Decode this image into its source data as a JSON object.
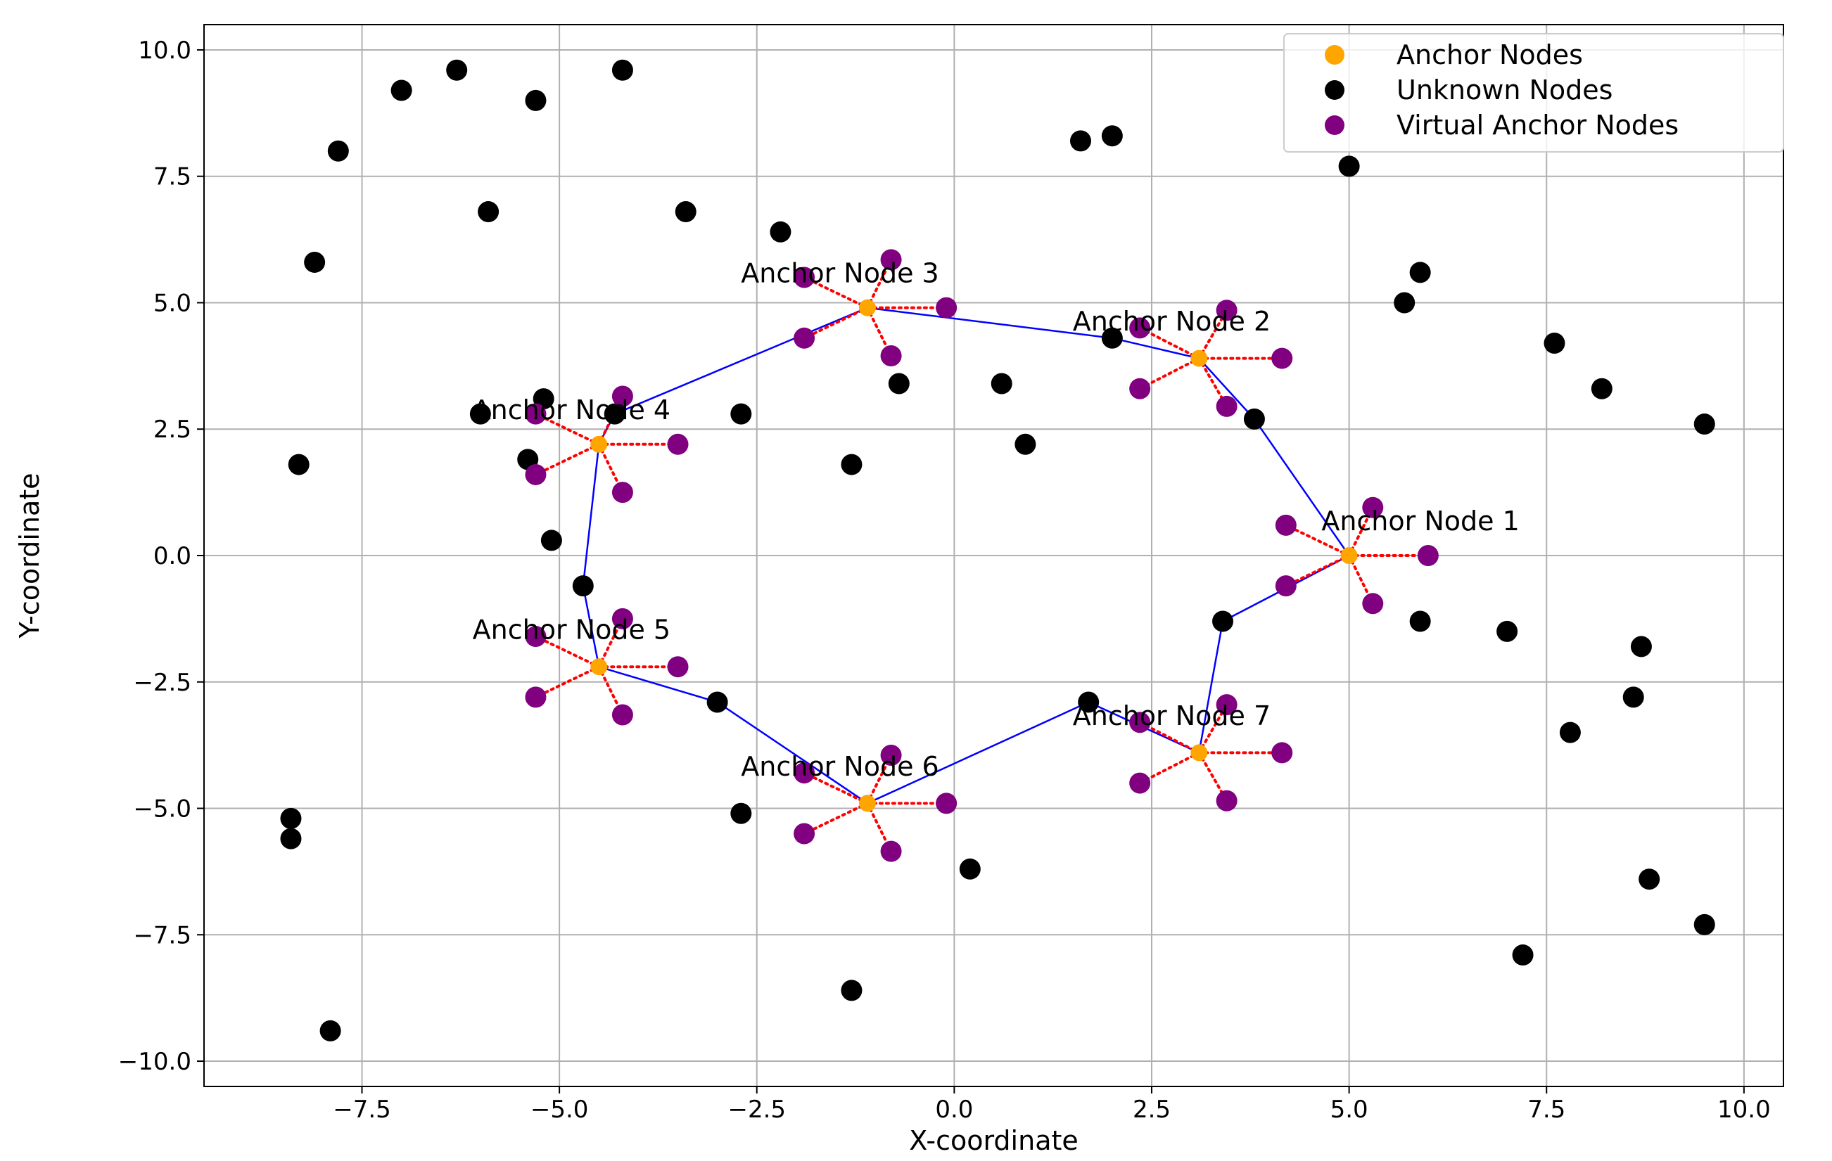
{
  "chart_data": {
    "type": "scatter",
    "title": "",
    "xlabel": "X-coordinate",
    "ylabel": "Y-coordinate",
    "xlim": [
      -9.5,
      10.5
    ],
    "ylim": [
      -10.5,
      10.5
    ],
    "xticks": [
      -7.5,
      -5.0,
      -2.5,
      0.0,
      2.5,
      5.0,
      7.5,
      10.0
    ],
    "yticks": [
      -10.0,
      -7.5,
      -5.0,
      -2.5,
      0.0,
      2.5,
      5.0,
      7.5,
      10.0
    ],
    "xtick_labels": [
      "−7.5",
      "−5.0",
      "−2.5",
      "0.0",
      "2.5",
      "5.0",
      "7.5",
      "10.0"
    ],
    "ytick_labels": [
      "−10.0",
      "−7.5",
      "−5.0",
      "−2.5",
      "0.0",
      "2.5",
      "5.0",
      "7.5",
      "10.0"
    ],
    "grid": true,
    "legend_position": "top-right",
    "colors": {
      "anchor": "#ffa500",
      "unknown": "#000000",
      "virtual": "#800080",
      "path": "#0000ff",
      "links": "#ff0000",
      "grid": "#b0b0b0"
    },
    "legend": [
      {
        "label": "Anchor Nodes",
        "color": "#ffa500"
      },
      {
        "label": "Unknown Nodes",
        "color": "#000000"
      },
      {
        "label": "Virtual Anchor Nodes",
        "color": "#800080"
      }
    ],
    "anchor_nodes": [
      {
        "label": "Anchor Node 1",
        "x": 5.0,
        "y": 0.0,
        "annot_dx": -0.35,
        "annot_dy": 0.5
      },
      {
        "label": "Anchor Node 2",
        "x": 3.1,
        "y": 3.9,
        "annot_dx": -1.6,
        "annot_dy": 0.55
      },
      {
        "label": "Anchor Node 3",
        "x": -1.1,
        "y": 4.9,
        "annot_dx": -1.6,
        "annot_dy": 0.5
      },
      {
        "label": "Anchor Node 4",
        "x": -4.5,
        "y": 2.2,
        "annot_dx": -1.6,
        "annot_dy": 0.5
      },
      {
        "label": "Anchor Node 5",
        "x": -4.5,
        "y": -2.2,
        "annot_dx": -1.6,
        "annot_dy": 0.55
      },
      {
        "label": "Anchor Node 6",
        "x": -1.1,
        "y": -4.9,
        "annot_dx": -1.6,
        "annot_dy": 0.55
      },
      {
        "label": "Anchor Node 7",
        "x": 3.1,
        "y": -3.9,
        "annot_dx": -1.6,
        "annot_dy": 0.55
      }
    ],
    "virtual_anchor_nodes": [
      [
        [
          6.0,
          0.0
        ],
        [
          5.3,
          0.95
        ],
        [
          4.2,
          0.6
        ],
        [
          4.2,
          -0.6
        ],
        [
          5.3,
          -0.95
        ]
      ],
      [
        [
          4.15,
          3.9
        ],
        [
          3.45,
          4.85
        ],
        [
          2.35,
          4.5
        ],
        [
          2.35,
          3.3
        ],
        [
          3.45,
          2.95
        ]
      ],
      [
        [
          -0.1,
          4.9
        ],
        [
          -0.8,
          5.85
        ],
        [
          -1.9,
          5.5
        ],
        [
          -1.9,
          4.3
        ],
        [
          -0.8,
          3.95
        ]
      ],
      [
        [
          -3.5,
          2.2
        ],
        [
          -4.2,
          3.15
        ],
        [
          -5.3,
          2.8
        ],
        [
          -5.3,
          1.6
        ],
        [
          -4.2,
          1.25
        ]
      ],
      [
        [
          -3.5,
          -2.2
        ],
        [
          -4.2,
          -1.25
        ],
        [
          -5.3,
          -1.6
        ],
        [
          -5.3,
          -2.8
        ],
        [
          -4.2,
          -3.15
        ]
      ],
      [
        [
          -0.1,
          -4.9
        ],
        [
          -0.8,
          -3.95
        ],
        [
          -1.9,
          -4.3
        ],
        [
          -1.9,
          -5.5
        ],
        [
          -0.8,
          -5.85
        ]
      ],
      [
        [
          4.15,
          -3.9
        ],
        [
          3.45,
          -2.95
        ],
        [
          2.35,
          -3.3
        ],
        [
          2.35,
          -4.5
        ],
        [
          3.45,
          -4.85
        ]
      ]
    ],
    "unknown_nodes": [
      [
        -7.0,
        9.2
      ],
      [
        -6.3,
        9.6
      ],
      [
        -5.3,
        9.0
      ],
      [
        -4.2,
        9.6
      ],
      [
        -7.8,
        8.0
      ],
      [
        -5.9,
        6.8
      ],
      [
        -3.4,
        6.8
      ],
      [
        -2.2,
        6.4
      ],
      [
        -8.1,
        5.8
      ],
      [
        1.6,
        8.2
      ],
      [
        2.0,
        8.3
      ],
      [
        5.0,
        7.7
      ],
      [
        5.9,
        5.6
      ],
      [
        5.7,
        5.0
      ],
      [
        7.6,
        4.2
      ],
      [
        8.2,
        3.3
      ],
      [
        9.5,
        2.6
      ],
      [
        2.0,
        4.3
      ],
      [
        0.6,
        3.4
      ],
      [
        -0.7,
        3.4
      ],
      [
        -6.0,
        2.8
      ],
      [
        -5.2,
        3.1
      ],
      [
        -4.3,
        2.8
      ],
      [
        -2.7,
        2.8
      ],
      [
        -8.3,
        1.8
      ],
      [
        -5.4,
        1.9
      ],
      [
        -1.3,
        1.8
      ],
      [
        0.9,
        2.2
      ],
      [
        3.8,
        2.7
      ],
      [
        -5.1,
        0.3
      ],
      [
        -4.7,
        -0.6
      ],
      [
        3.4,
        -1.3
      ],
      [
        5.9,
        -1.3
      ],
      [
        7.0,
        -1.5
      ],
      [
        8.7,
        -1.8
      ],
      [
        8.6,
        -2.8
      ],
      [
        7.8,
        -3.5
      ],
      [
        -3.0,
        -2.9
      ],
      [
        1.7,
        -2.9
      ],
      [
        -2.7,
        -5.1
      ],
      [
        -8.4,
        -5.2
      ],
      [
        -8.4,
        -5.6
      ],
      [
        0.2,
        -6.2
      ],
      [
        8.8,
        -6.4
      ],
      [
        9.5,
        -7.3
      ],
      [
        7.2,
        -7.9
      ],
      [
        -1.3,
        -8.6
      ],
      [
        -7.9,
        -9.4
      ]
    ],
    "path": [
      [
        5.0,
        0.0
      ],
      [
        3.8,
        2.7
      ],
      [
        3.1,
        3.9
      ],
      [
        2.0,
        4.3
      ],
      [
        -1.1,
        4.9
      ],
      [
        -4.3,
        2.8
      ],
      [
        -4.5,
        2.2
      ],
      [
        -4.7,
        -0.6
      ],
      [
        -4.5,
        -2.2
      ],
      [
        -3.0,
        -2.9
      ],
      [
        -1.1,
        -4.9
      ],
      [
        1.7,
        -2.9
      ],
      [
        3.1,
        -3.9
      ],
      [
        3.4,
        -1.3
      ],
      [
        5.0,
        0.0
      ]
    ]
  }
}
